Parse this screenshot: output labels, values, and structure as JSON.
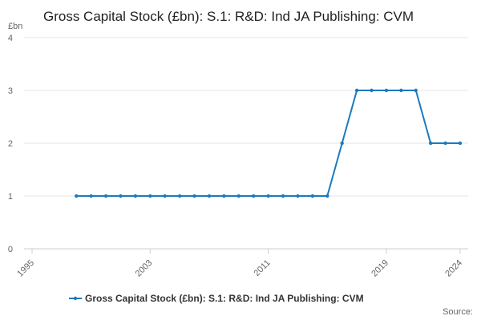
{
  "chart_data": {
    "type": "line",
    "title": "Gross Capital Stock (£bn): S.1: R&D: Ind JA Publishing: CVM",
    "y_label": "£bn",
    "source": "Source:",
    "x": [
      1998,
      1999,
      2000,
      2001,
      2002,
      2003,
      2004,
      2005,
      2006,
      2007,
      2008,
      2009,
      2010,
      2011,
      2012,
      2013,
      2014,
      2015,
      2016,
      2017,
      2018,
      2019,
      2020,
      2021,
      2022,
      2023,
      2024
    ],
    "series": [
      {
        "name": "Gross Capital Stock (£bn): S.1: R&D: Ind JA Publishing: CVM",
        "color": "#1a7abf",
        "values": [
          1,
          1,
          1,
          1,
          1,
          1,
          1,
          1,
          1,
          1,
          1,
          1,
          1,
          1,
          1,
          1,
          1,
          1,
          2,
          3,
          3,
          3,
          3,
          3,
          2,
          2,
          2
        ]
      }
    ],
    "xlim": [
      1995,
      2024
    ],
    "xticks": [
      1995,
      2003,
      2011,
      2019,
      2024
    ],
    "ylim": [
      0,
      4
    ],
    "yticks": [
      0,
      1,
      2,
      3,
      4
    ],
    "grid": true,
    "legend": "bottom"
  }
}
